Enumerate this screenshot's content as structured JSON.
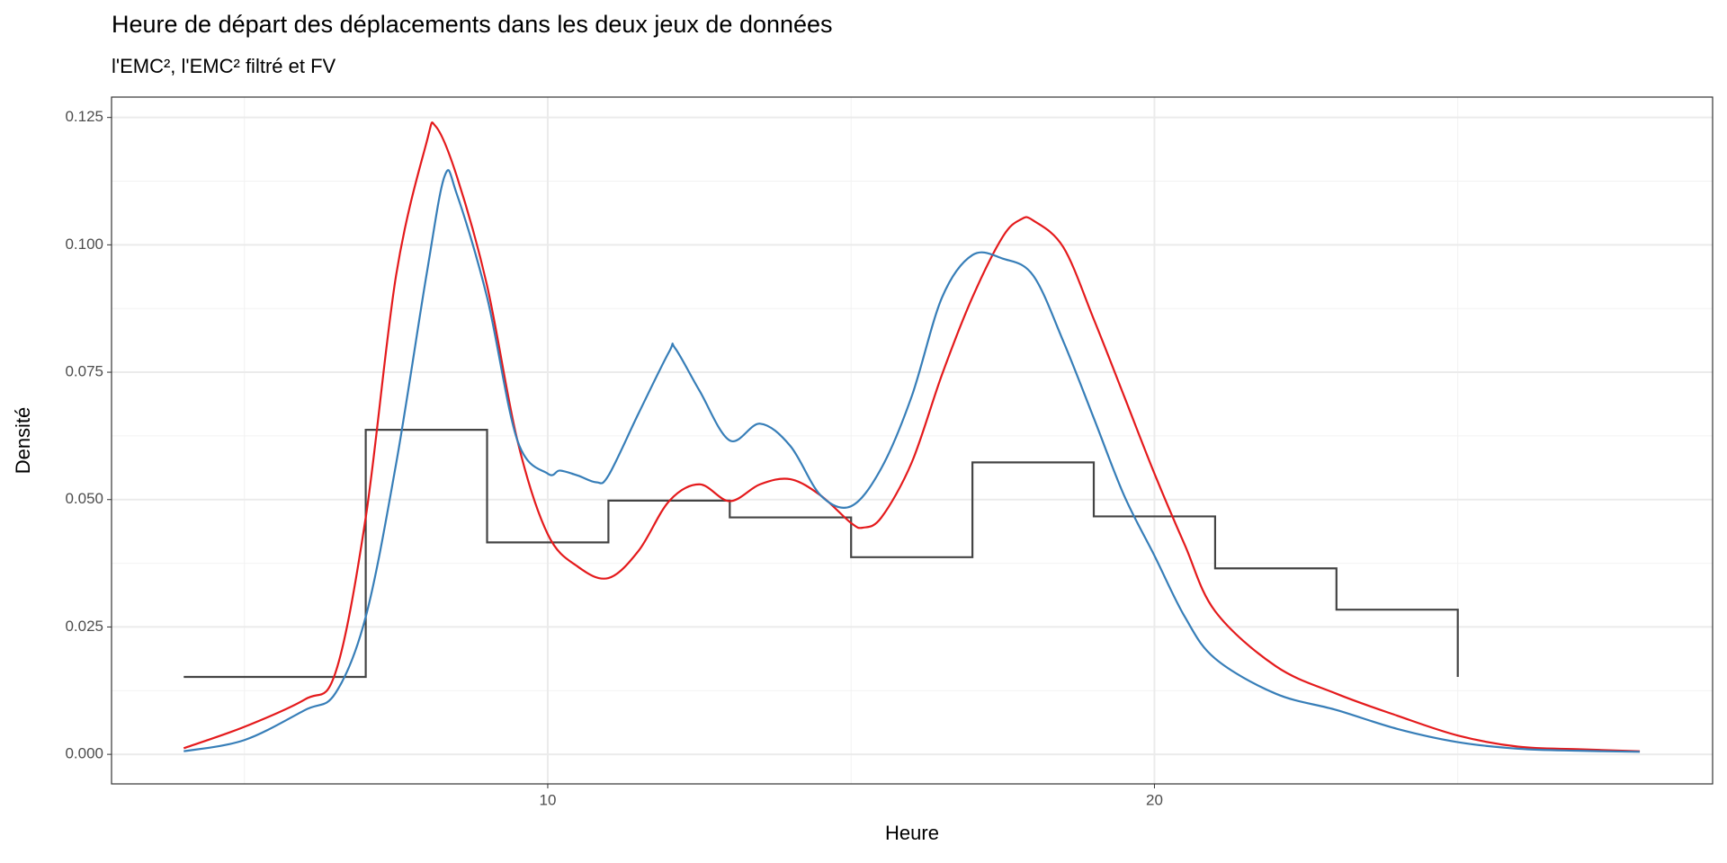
{
  "chart_data": {
    "type": "line",
    "title": "Heure de départ des déplacements dans les deux jeux de données",
    "subtitle": "l'EMC², l'EMC² filtré et FV",
    "x_label": "Heure",
    "y_label": "Densité",
    "xlim": [
      2.81,
      29.2
    ],
    "ylim": [
      -0.0058,
      0.129
    ],
    "xticks": [
      10,
      20
    ],
    "x_minor_ticks": [
      5,
      15,
      25
    ],
    "yticks": [
      {
        "value": 0,
        "label": "0.000"
      },
      0.025,
      {
        "value": 0.05,
        "label": "0.050"
      },
      0.075,
      {
        "value": 0.1,
        "label": "0.100"
      },
      0.125
    ],
    "y_minor_ticks": [
      0.0125,
      0.0375,
      0.0625,
      0.0875,
      0.1125
    ],
    "grid": true,
    "series": [
      {
        "color": "#444444",
        "step": true,
        "x": [
          4,
          7,
          9,
          11,
          13,
          15,
          17,
          19,
          21,
          23,
          25
        ],
        "values": [
          0.0152,
          0.0637,
          0.0416,
          0.0498,
          0.0465,
          0.0387,
          0.0573,
          0.0467,
          0.0365,
          0.0284,
          0.0152
        ]
      },
      {
        "color": "#e41a1c",
        "x": [
          4,
          5,
          6,
          6.5,
          7,
          7.5,
          8,
          8.15,
          8.5,
          9,
          9.5,
          10,
          10.5,
          11,
          11.5,
          12,
          12.5,
          13,
          13.5,
          14,
          14.5,
          15,
          15.2,
          15.5,
          16,
          16.5,
          17,
          17.5,
          17.8,
          18,
          18.5,
          19,
          19.5,
          20,
          20.5,
          21,
          22,
          23,
          24,
          25,
          26,
          27,
          28
        ],
        "values": [
          0.0012,
          0.0054,
          0.0108,
          0.016,
          0.0465,
          0.094,
          0.12,
          0.1233,
          0.1135,
          0.092,
          0.0616,
          0.0432,
          0.0368,
          0.0346,
          0.04,
          0.0497,
          0.053,
          0.0497,
          0.053,
          0.054,
          0.0508,
          0.0454,
          0.0445,
          0.0465,
          0.0573,
          0.0746,
          0.0897,
          0.1016,
          0.105,
          0.1048,
          0.0995,
          0.0854,
          0.0703,
          0.0551,
          0.0411,
          0.0281,
          0.0173,
          0.0119,
          0.0076,
          0.0037,
          0.0015,
          0.001,
          0.0006
        ]
      },
      {
        "color": "#377eb8",
        "x": [
          4,
          5,
          6,
          6.5,
          7,
          7.5,
          8,
          8.3,
          8.5,
          9,
          9.5,
          10,
          10.2,
          10.5,
          10.8,
          11,
          11.5,
          12,
          12.1,
          12.5,
          13,
          13.5,
          14,
          14.5,
          15,
          15.5,
          16,
          16.5,
          17,
          17.5,
          18,
          18.5,
          19,
          19.5,
          20,
          20.5,
          21,
          22,
          23,
          24,
          25,
          26,
          27,
          28
        ],
        "values": [
          0.0006,
          0.0028,
          0.0087,
          0.012,
          0.027,
          0.057,
          0.094,
          0.1135,
          0.11,
          0.0897,
          0.0616,
          0.0551,
          0.0557,
          0.0547,
          0.0534,
          0.0547,
          0.067,
          0.079,
          0.0797,
          0.0714,
          0.0616,
          0.0649,
          0.0605,
          0.0508,
          0.0487,
          0.0562,
          0.0703,
          0.0897,
          0.098,
          0.0973,
          0.094,
          0.081,
          0.066,
          0.0508,
          0.039,
          0.027,
          0.0188,
          0.0119,
          0.0087,
          0.005,
          0.0024,
          0.0011,
          0.0007,
          0.0005
        ]
      }
    ]
  }
}
